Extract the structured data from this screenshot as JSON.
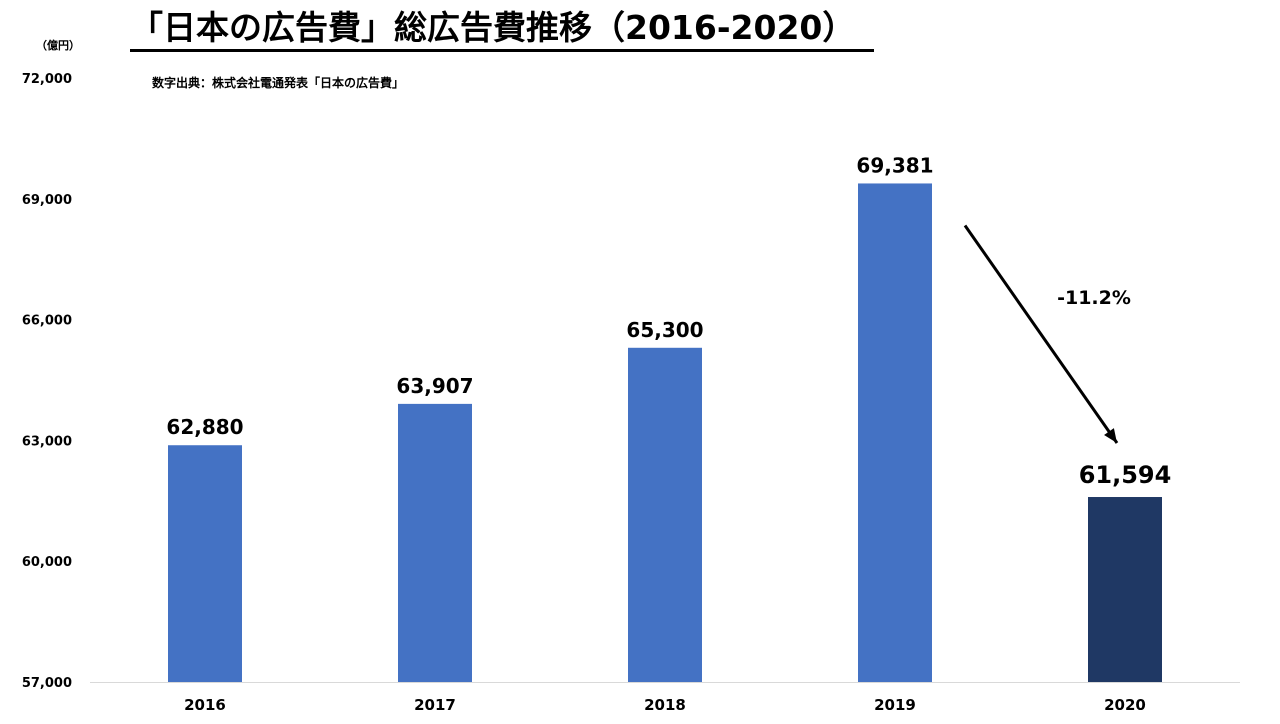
{
  "title": "「日本の広告費」総広告費推移（2016-2020）",
  "source_note": "数字出典：株式会社電通発表「日本の広告費」",
  "unit_label": "（億円）",
  "colors": {
    "bar": "#4472C4",
    "bar_highlight": "#1F3864",
    "axis": "#D9D9D9",
    "text": "#000000"
  },
  "chart_data": {
    "type": "bar",
    "title": "「日本の広告費」総広告費推移（2016-2020）",
    "xlabel": "",
    "ylabel": "（億円）",
    "categories": [
      "2016",
      "2017",
      "2018",
      "2019",
      "2020"
    ],
    "values": [
      62880,
      63907,
      65300,
      69381,
      61594
    ],
    "value_labels": [
      "62,880",
      "63,907",
      "65,300",
      "69,381",
      "61,594"
    ],
    "highlight_index": 4,
    "ylim": [
      57000,
      72000
    ],
    "yticks": [
      57000,
      60000,
      63000,
      66000,
      69000,
      72000
    ],
    "ytick_labels": [
      "57,000",
      "60,000",
      "63,000",
      "66,000",
      "69,000",
      "72,000"
    ],
    "grid": false,
    "annotation": {
      "text": "-11.2%",
      "from_category": "2019",
      "to_category": "2020"
    }
  }
}
